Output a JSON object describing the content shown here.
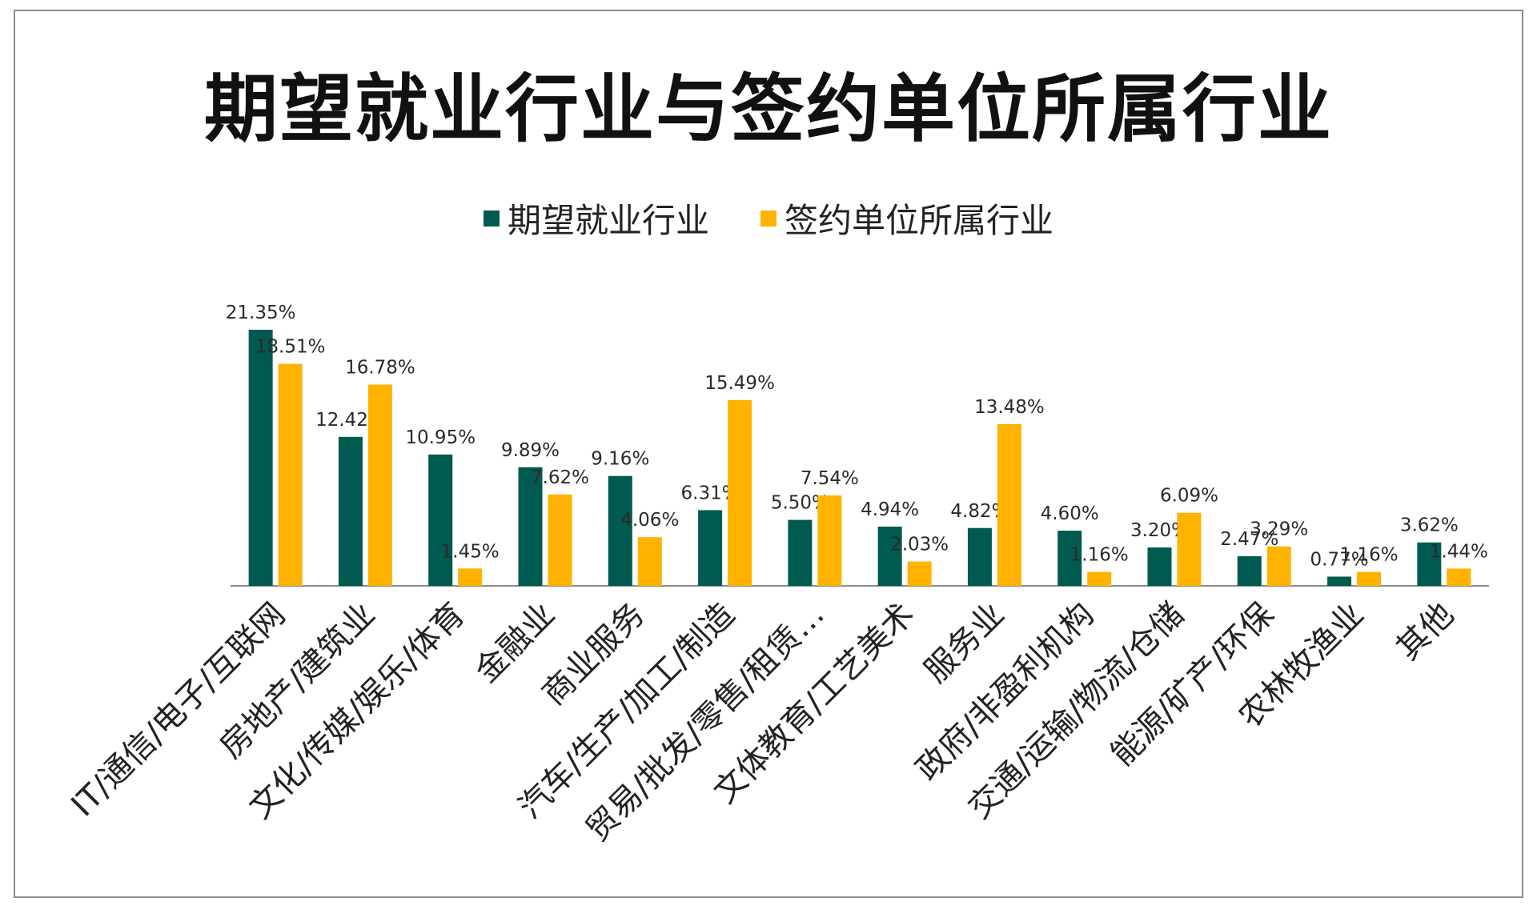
{
  "chart_data": {
    "type": "bar",
    "title": "期望就业行业与签约单位所属行业",
    "xlabel": "",
    "ylabel": "",
    "ylim": [
      0,
      21.35
    ],
    "grid": false,
    "legend_position": "top",
    "categories": [
      "IT/通信/电子/互联网",
      "房地产/建筑业",
      "文化/传媒/娱乐/体育",
      "金融业",
      "商业服务",
      "汽车/生产/加工/制造",
      "贸易/批发/零售/租赁…",
      "文体教育/工艺美术",
      "服务业",
      "政府/非盈利机构",
      "交通/运输/物流/仓储",
      "能源/矿产/环保",
      "农林牧渔业",
      "其他"
    ],
    "series": [
      {
        "name": "期望就业行业",
        "color": "#005a50",
        "values": [
          21.35,
          12.42,
          10.95,
          9.89,
          9.16,
          6.31,
          5.5,
          4.94,
          4.82,
          4.6,
          3.2,
          2.47,
          0.77,
          3.62
        ],
        "labels": [
          "21.35%",
          "12.42%",
          "10.95%",
          "9.89%",
          "9.16%",
          "6.31%",
          "5.50%",
          "4.94%",
          "4.82%",
          "4.60%",
          "3.20%",
          "2.47%",
          "0.77%",
          "3.62%"
        ]
      },
      {
        "name": "签约单位所属行业",
        "color": "#ffb300",
        "values": [
          18.51,
          16.78,
          1.45,
          7.62,
          4.06,
          15.49,
          7.54,
          2.03,
          13.48,
          1.16,
          6.09,
          3.29,
          1.16,
          1.44
        ],
        "labels": [
          "18.51%",
          "16.78%",
          "1.45%",
          "7.62%",
          "4.06%",
          "15.49%",
          "7.54%",
          "2.03%",
          "13.48%",
          "1.16%",
          "6.09%",
          "3.29%",
          "1.16%",
          "1.44%"
        ]
      }
    ]
  }
}
